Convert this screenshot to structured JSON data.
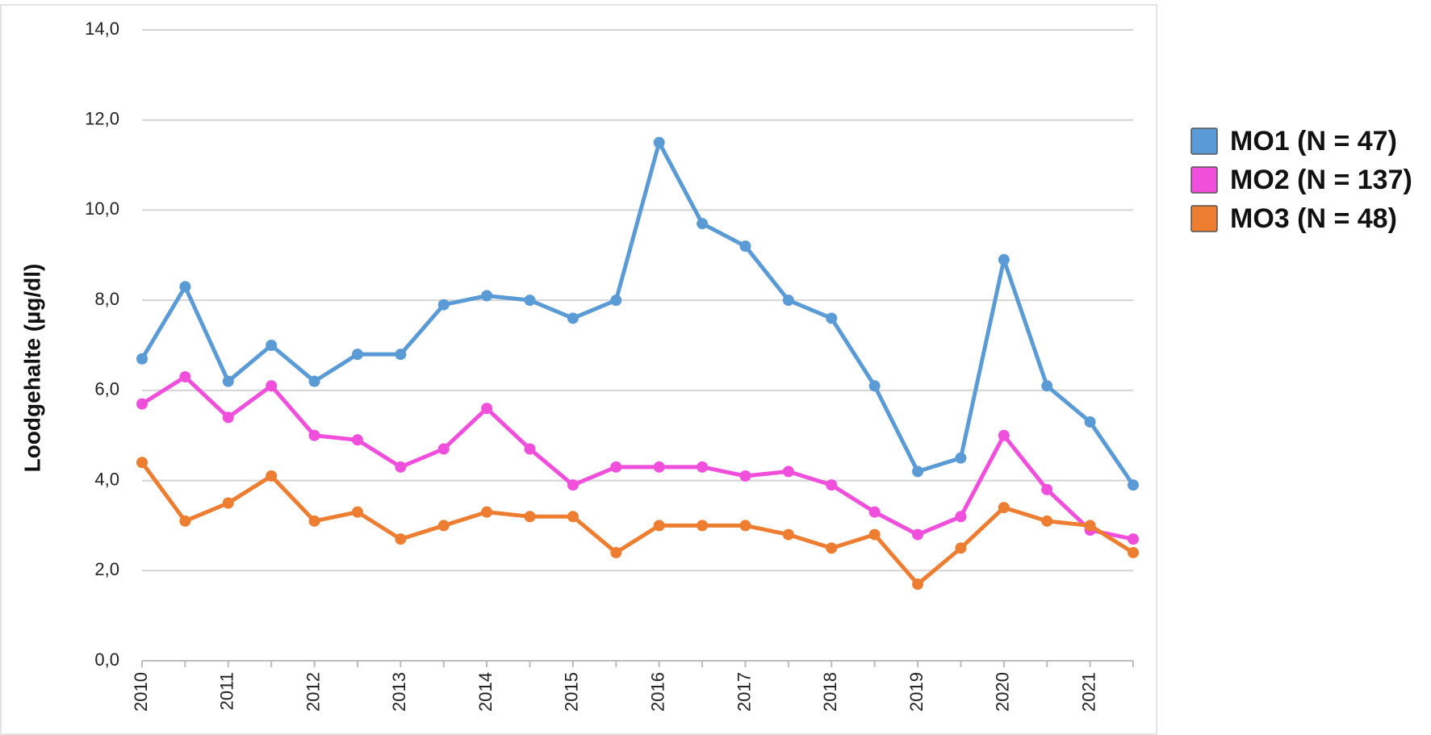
{
  "chart_data": {
    "type": "line",
    "y_label": "Loodgehalte (µg/dl)",
    "categories": [
      "2010",
      null,
      "2011",
      null,
      "2012",
      null,
      "2013",
      null,
      "2014",
      null,
      "2015",
      null,
      "2016",
      null,
      "2017",
      null,
      "2018",
      null,
      "2019",
      null,
      "2020",
      null,
      "2021",
      null
    ],
    "series": [
      {
        "name": "MO1 (N = 47)",
        "color": "#5b9bd5",
        "values": [
          6.7,
          8.3,
          6.2,
          7.0,
          6.2,
          6.8,
          6.8,
          7.9,
          8.1,
          8.0,
          7.6,
          8.0,
          11.5,
          9.7,
          9.2,
          8.0,
          7.6,
          6.1,
          4.2,
          4.5,
          8.9,
          6.1,
          5.3,
          3.9
        ]
      },
      {
        "name": "MO2 (N = 137)",
        "color": "#f04fdc",
        "values": [
          5.7,
          6.3,
          5.4,
          6.1,
          5.0,
          4.9,
          4.3,
          4.7,
          5.6,
          4.7,
          3.9,
          4.3,
          4.3,
          4.3,
          4.1,
          4.2,
          3.9,
          3.3,
          2.8,
          3.2,
          5.0,
          3.8,
          2.9,
          2.7
        ]
      },
      {
        "name": "MO3 (N = 48)",
        "color": "#ed7d31",
        "values": [
          4.4,
          3.1,
          3.5,
          4.1,
          3.1,
          3.3,
          2.7,
          3.0,
          3.3,
          3.2,
          3.2,
          2.4,
          3.0,
          3.0,
          3.0,
          2.8,
          2.5,
          2.8,
          1.7,
          2.5,
          3.4,
          3.1,
          3.0,
          2.4
        ]
      }
    ],
    "ylim": [
      0,
      14
    ],
    "yticks": [
      {
        "value": 0,
        "label": "0,0"
      },
      {
        "value": 2,
        "label": "2,0"
      },
      {
        "value": 4,
        "label": "4,0"
      },
      {
        "value": 6,
        "label": "6,0"
      },
      {
        "value": 8,
        "label": "8,0"
      },
      {
        "value": 10,
        "label": "10,0"
      },
      {
        "value": 12,
        "label": "12,0"
      },
      {
        "value": 14,
        "label": "14,0"
      }
    ],
    "grid": true
  }
}
